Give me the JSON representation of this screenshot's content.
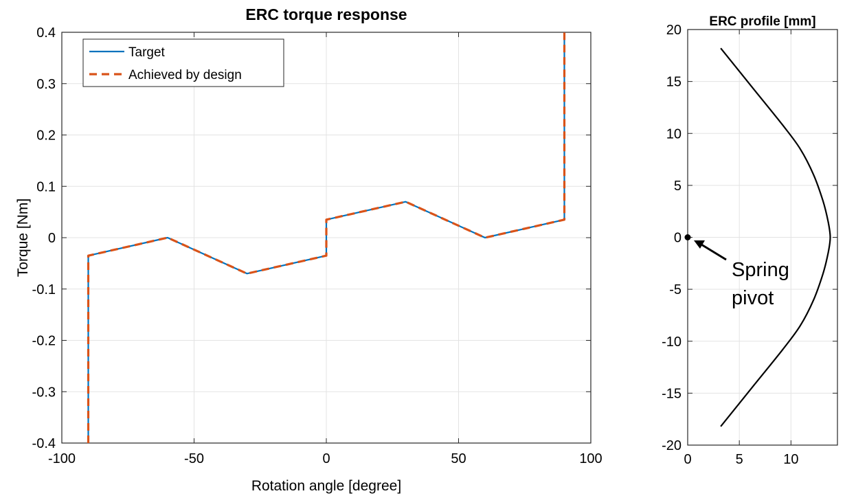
{
  "chart_data": [
    {
      "type": "line",
      "title": "ERC torque response",
      "xlabel": "Rotation angle [degree]",
      "ylabel": "Torque [Nm]",
      "xlim": [
        -100,
        100
      ],
      "ylim": [
        -0.4,
        0.4
      ],
      "xticks": [
        -100,
        -50,
        0,
        50,
        100
      ],
      "yticks": [
        -0.4,
        -0.3,
        -0.2,
        -0.1,
        0,
        0.1,
        0.2,
        0.3,
        0.4
      ],
      "xtick_labels": [
        "-100",
        "-50",
        "0",
        "50",
        "100"
      ],
      "ytick_labels": [
        "-0.4",
        "-0.3",
        "-0.2",
        "-0.1",
        "0",
        "0.1",
        "0.2",
        "0.3",
        "0.4"
      ],
      "grid": true,
      "legend_position": "top-left",
      "series": [
        {
          "name": "Target",
          "color": "#0072BD",
          "style": "solid",
          "x": [
            -90,
            -90,
            -60,
            -30,
            0,
            0,
            30,
            60,
            90,
            90
          ],
          "y": [
            -0.4,
            -0.035,
            0,
            -0.07,
            -0.035,
            0.035,
            0.07,
            0,
            0.035,
            0.4
          ]
        },
        {
          "name": "Achieved by design",
          "color": "#D95319",
          "style": "dashed",
          "x": [
            -90,
            -90,
            -60,
            -30,
            0,
            0,
            30,
            60,
            90,
            90
          ],
          "y": [
            -0.4,
            -0.035,
            0,
            -0.07,
            -0.035,
            0.035,
            0.07,
            0,
            0.035,
            0.4
          ]
        }
      ]
    },
    {
      "type": "line",
      "title": "ERC profile [mm]",
      "xlim": [
        0,
        14.5
      ],
      "ylim": [
        -20,
        20
      ],
      "xticks": [
        0,
        5,
        10
      ],
      "yticks": [
        -20,
        -15,
        -10,
        -5,
        0,
        5,
        10,
        15,
        20
      ],
      "xtick_labels": [
        "0",
        "5",
        "10"
      ],
      "ytick_labels": [
        "-20",
        "-15",
        "-10",
        "-5",
        "0",
        "5",
        "10",
        "15",
        "20"
      ],
      "grid": true,
      "series": [
        {
          "color": "#000000",
          "style": "solid",
          "x": [
            3.2,
            6.2,
            9.2,
            10.9,
            12.2,
            13.1,
            13.6,
            13.8,
            13.6,
            13.1,
            12.2,
            10.9,
            9.2,
            6.2,
            3.2
          ],
          "y": [
            18.2,
            14.5,
            10.8,
            8.5,
            6.0,
            3.5,
            1.5,
            0,
            -1.5,
            -3.5,
            -6.0,
            -8.5,
            -10.8,
            -14.5,
            -18.2
          ]
        }
      ],
      "marker": {
        "label": "Spring pivot",
        "x": 0,
        "y": 0
      },
      "annotation": {
        "line1": "Spring",
        "line2": "pivot"
      }
    }
  ]
}
